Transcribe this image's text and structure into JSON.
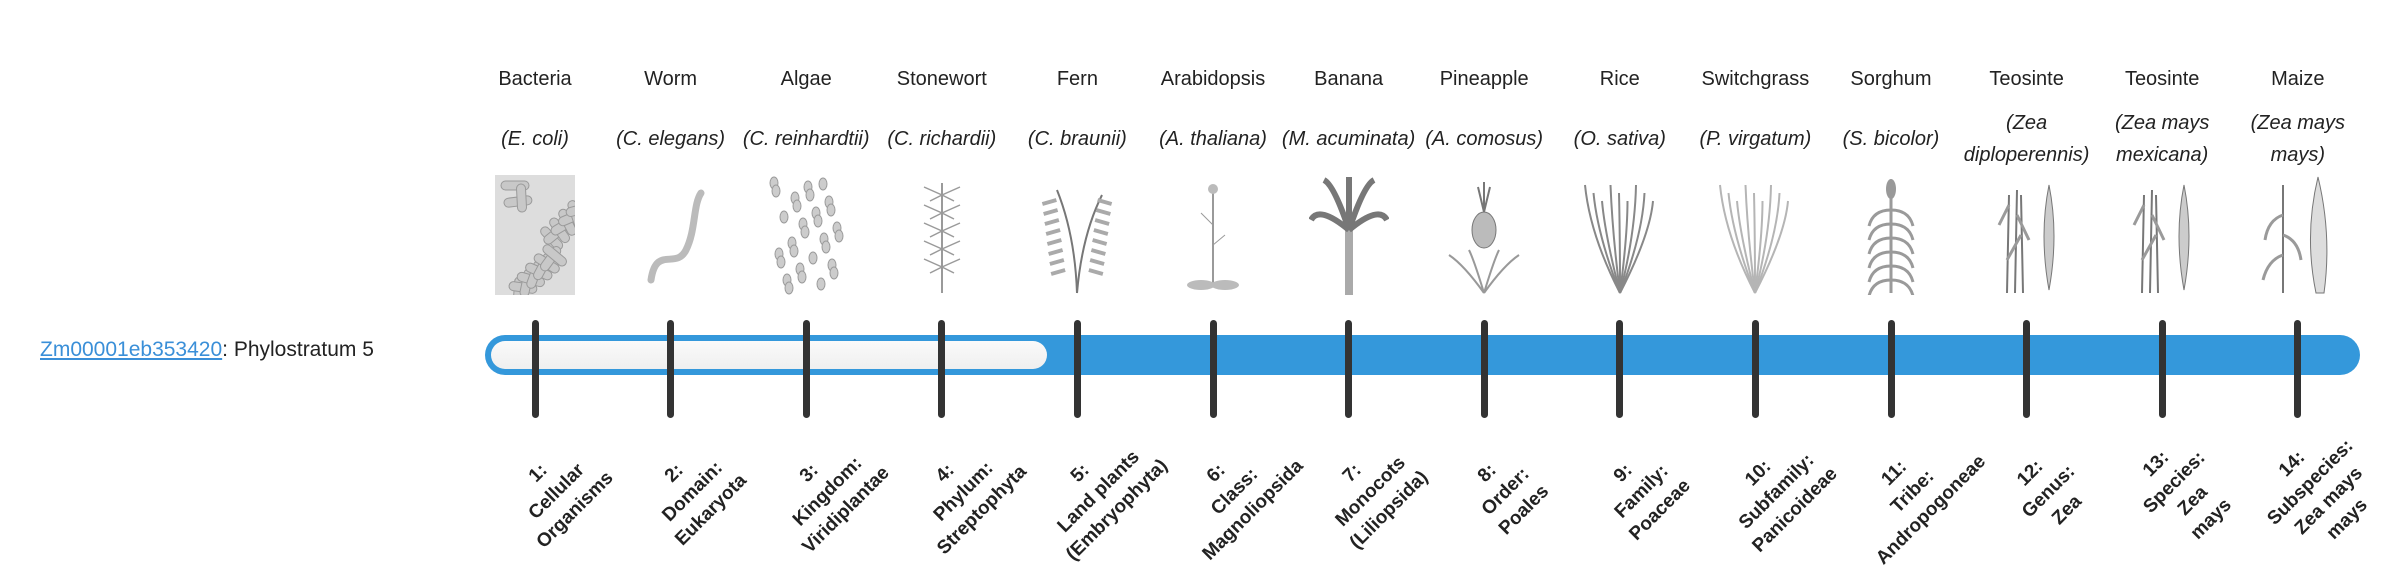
{
  "gene": {
    "id": "Zm00001eb353420",
    "suffix": ": Phylostratum 5"
  },
  "phylostratum": 5,
  "colors": {
    "bar": "#3498db",
    "link": "#3a8fd8",
    "tick": "#333333"
  },
  "strata": [
    {
      "common": "Bacteria",
      "species": "(E. coli)",
      "icon": "bacteria-icon",
      "rank": [
        "1:",
        "Cellular",
        "Organisms"
      ]
    },
    {
      "common": "Worm",
      "species": "(C. elegans)",
      "icon": "worm-icon",
      "rank": [
        "2:",
        "Domain:",
        "Eukaryota"
      ]
    },
    {
      "common": "Algae",
      "species": "(C. reinhardtii)",
      "icon": "algae-icon",
      "rank": [
        "3:",
        "Kingdom:",
        "Viridiplantae"
      ]
    },
    {
      "common": "Stonewort",
      "species": "(C. richardii)",
      "icon": "stonewort-icon",
      "rank": [
        "4:",
        "Phylum:",
        "Streptophyta"
      ]
    },
    {
      "common": "Fern",
      "species": "(C. braunii)",
      "icon": "fern-icon",
      "rank": [
        "5:",
        "Land plants",
        "(Embryophyta)"
      ]
    },
    {
      "common": "Arabidopsis",
      "species": "(A. thaliana)",
      "icon": "arabidopsis-icon",
      "rank": [
        "6:",
        "Class:",
        "Magnoliopsida"
      ]
    },
    {
      "common": "Banana",
      "species": "(M. acuminata)",
      "icon": "banana-plant-icon",
      "rank": [
        "7:",
        "Monocots",
        "(Liliopsida)"
      ]
    },
    {
      "common": "Pineapple",
      "species": "(A. comosus)",
      "icon": "pineapple-icon",
      "rank": [
        "8:",
        "Order:",
        "Poales"
      ]
    },
    {
      "common": "Rice",
      "species": "(O. sativa)",
      "icon": "rice-icon",
      "rank": [
        "9:",
        "Family:",
        "Poaceae"
      ]
    },
    {
      "common": "Switchgrass",
      "species": "(P. virgatum)",
      "icon": "switchgrass-icon",
      "rank": [
        "10:",
        "Subfamily:",
        "Panicoideae"
      ]
    },
    {
      "common": "Sorghum",
      "species": "(S. bicolor)",
      "icon": "sorghum-icon",
      "rank": [
        "11:",
        "Tribe:",
        "Andropogoneae"
      ]
    },
    {
      "common": "Teosinte",
      "species": "(Zea diploperennis)",
      "icon": "teosinte-icon",
      "rank": [
        "12:",
        "Genus:",
        "Zea"
      ]
    },
    {
      "common": "Teosinte",
      "species": "(Zea mays mexicana)",
      "icon": "teosinte-icon",
      "rank": [
        "13:",
        "Species:",
        "Zea",
        "mays"
      ]
    },
    {
      "common": "Maize",
      "species": "(Zea mays mays)",
      "icon": "maize-icon",
      "rank": [
        "14:",
        "Subspecies:",
        "Zea mays",
        "mays"
      ]
    }
  ]
}
